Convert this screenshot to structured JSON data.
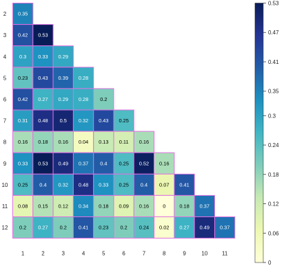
{
  "chart_data": {
    "type": "heatmap",
    "title": "",
    "xlabel": "",
    "ylabel": "",
    "row_labels": [
      "2",
      "3",
      "4",
      "5",
      "6",
      "7",
      "8",
      "9",
      "10",
      "11",
      "12"
    ],
    "col_labels": [
      "1",
      "2",
      "3",
      "4",
      "5",
      "6",
      "7",
      "8",
      "9",
      "10",
      "11"
    ],
    "values": [
      [
        0.35
      ],
      [
        0.42,
        0.53
      ],
      [
        0.3,
        0.33,
        0.29
      ],
      [
        0.23,
        0.43,
        0.39,
        0.28
      ],
      [
        0.42,
        0.27,
        0.29,
        0.28,
        0.2
      ],
      [
        0.31,
        0.48,
        0.5,
        0.32,
        0.43,
        0.25
      ],
      [
        0.16,
        0.18,
        0.16,
        0.04,
        0.13,
        0.11,
        0.16
      ],
      [
        0.33,
        0.53,
        0.49,
        0.37,
        0.4,
        0.25,
        0.52,
        0.16
      ],
      [
        0.25,
        0.4,
        0.32,
        0.48,
        0.33,
        0.25,
        0.4,
        0.07,
        0.41
      ],
      [
        0.08,
        0.15,
        0.12,
        0.34,
        0.18,
        0.09,
        0.16,
        0,
        0.18,
        0.37
      ],
      [
        0.2,
        0.27,
        0.2,
        0.41,
        0.23,
        0.2,
        0.24,
        0.02,
        0.27,
        0.49,
        0.37
      ]
    ],
    "colorbar": {
      "min": 0,
      "max": 0.53,
      "ticks": [
        "0.53",
        "0.47",
        "0.41",
        "0.35",
        "0.3",
        "0.24",
        "0.18",
        "0.12",
        "0.06",
        "0"
      ],
      "tick_values": [
        0.53,
        0.47,
        0.41,
        0.35,
        0.3,
        0.24,
        0.18,
        0.12,
        0.06,
        0
      ]
    },
    "colormap": [
      "#ffffd9",
      "#edf8b1",
      "#c7e9b4",
      "#7fcdbb",
      "#41b6c4",
      "#1d91c0",
      "#225ea8",
      "#253494",
      "#081d58"
    ],
    "cell_border_color": "#e070e0",
    "grid": false
  }
}
